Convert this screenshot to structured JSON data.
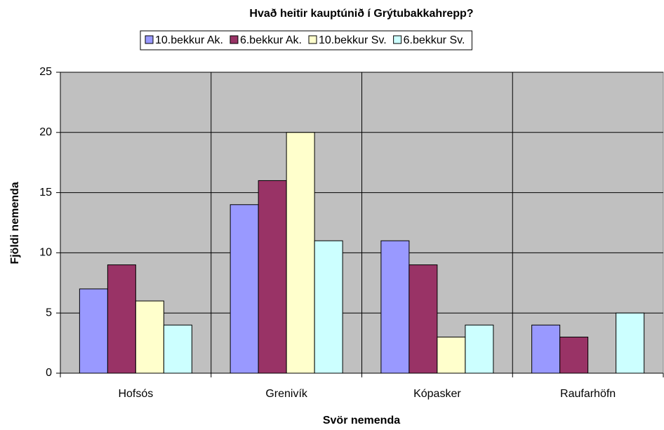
{
  "chart_data": {
    "type": "bar",
    "title": "Hvað heitir kauptúnið í Grýtubakkahrepp?",
    "x_label": "Svör nemenda",
    "y_label": "Fjöldi nemenda",
    "categories": [
      "Hofsós",
      "Grenivík",
      "Kópasker",
      "Raufarhöfn"
    ],
    "series": [
      {
        "name": "10.bekkur Ak.",
        "color": "#9999ff",
        "values": [
          7,
          14,
          11,
          4
        ]
      },
      {
        "name": "6.bekkur Ak.",
        "color": "#993366",
        "values": [
          9,
          16,
          9,
          3
        ]
      },
      {
        "name": "10.bekkur Sv.",
        "color": "#ffffcc",
        "values": [
          6,
          20,
          3,
          0
        ]
      },
      {
        "name": "6.bekkur Sv.",
        "color": "#ccffff",
        "values": [
          4,
          11,
          4,
          5
        ]
      }
    ],
    "ylim": [
      0,
      25
    ],
    "yticks": [
      0,
      5,
      10,
      15,
      20,
      25
    ],
    "grid": true,
    "legend": "top"
  }
}
